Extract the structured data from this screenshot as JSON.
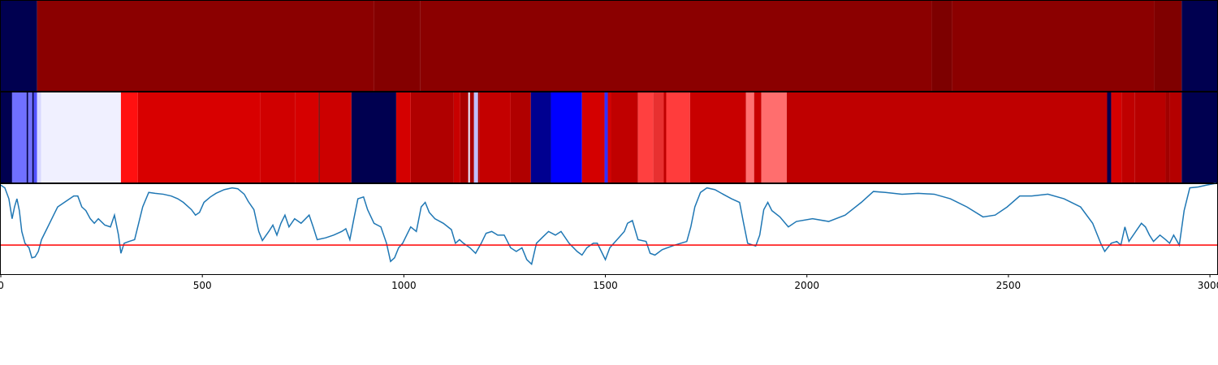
{
  "chart_data": [
    {
      "type": "strip",
      "xlim": [
        0,
        3018
      ],
      "bounds": [
        0,
        90,
        926,
        1041,
        2310,
        2360,
        2862,
        2930,
        3018
      ],
      "colors": [
        "#000050",
        "#8b0000",
        "#840000",
        "#8b0000",
        "#7d0000",
        "#8b0000",
        "#7f0000",
        "#000050"
      ]
    },
    {
      "type": "strip",
      "xlim": [
        0,
        3018
      ],
      "bounds": [
        0,
        28,
        64,
        68,
        78,
        82,
        90,
        100,
        298,
        340,
        644,
        731,
        789,
        791,
        870,
        981,
        1017,
        1124,
        1140,
        1160,
        1164,
        1174,
        1184,
        1188,
        1265,
        1315,
        1365,
        1442,
        1498,
        1506,
        1514,
        1581,
        1619,
        1645,
        1651,
        1710,
        1849,
        1869,
        1887,
        1950,
        2745,
        2755,
        2781,
        2814,
        2890,
        2900,
        2930,
        3018
      ],
      "colors": [
        "#000050",
        "#7070ff",
        "#000050",
        "#7070ff",
        "#000050",
        "#5050ff",
        "#d8d8ff",
        "#f0f0ff",
        "#ff1010",
        "#d80000",
        "#d00000",
        "#d60000",
        "#300000",
        "#cc0000",
        "#000050",
        "#d40000",
        "#b00000",
        "#c80000",
        "#a80000",
        "#e8e8ff",
        "#a80000",
        "#c0c0ff",
        "#a80000",
        "#c40000",
        "#b00000",
        "#000090",
        "#0000ff",
        "#d40000",
        "#3030ff",
        "#d40000",
        "#c00000",
        "#ff4040",
        "#e83030",
        "#c00000",
        "#ff3c3c",
        "#c80000",
        "#ff7070",
        "#c80000",
        "#ff6e6e",
        "#bf0000",
        "#000050",
        "#d40000",
        "#bf0000",
        "#b80000",
        "#a00000",
        "#b40000",
        "#000050"
      ]
    },
    {
      "type": "line",
      "xlim": [
        0,
        3018
      ],
      "ylim": [
        0,
        100
      ],
      "xticks": [
        0,
        500,
        1000,
        1500,
        2000,
        2500,
        3000
      ],
      "threshold": 32,
      "threshold_color": "#ff0000",
      "x": [
        0,
        10,
        20,
        28,
        34,
        40,
        46,
        52,
        60,
        70,
        77,
        85,
        93,
        101,
        111,
        121,
        131,
        141,
        161,
        181,
        191,
        201,
        211,
        222,
        232,
        242,
        258,
        272,
        282,
        292,
        298,
        306,
        318,
        332,
        342,
        352,
        367,
        383,
        403,
        423,
        439,
        453,
        473,
        483,
        493,
        504,
        520,
        534,
        554,
        574,
        588,
        604,
        614,
        628,
        640,
        649,
        665,
        675,
        685,
        695,
        705,
        715,
        729,
        745,
        765,
        775,
        785,
        806,
        826,
        846,
        856,
        866,
        876,
        886,
        900,
        910,
        926,
        943,
        957,
        967,
        977,
        987,
        997,
        1007,
        1017,
        1031,
        1043,
        1053,
        1063,
        1077,
        1098,
        1118,
        1128,
        1138,
        1148,
        1164,
        1178,
        1192,
        1204,
        1218,
        1233,
        1249,
        1265,
        1279,
        1293,
        1305,
        1317,
        1329,
        1345,
        1359,
        1376,
        1390,
        1410,
        1430,
        1442,
        1454,
        1470,
        1480,
        1490,
        1500,
        1511,
        1521,
        1535,
        1547,
        1555,
        1567,
        1581,
        1601,
        1611,
        1623,
        1641,
        1672,
        1702,
        1712,
        1722,
        1736,
        1752,
        1772,
        1792,
        1813,
        1833,
        1843,
        1853,
        1873,
        1883,
        1893,
        1903,
        1913,
        1933,
        1954,
        1974,
        2014,
        2054,
        2095,
        2135,
        2165,
        2195,
        2236,
        2276,
        2316,
        2356,
        2397,
        2437,
        2467,
        2497,
        2528,
        2558,
        2598,
        2638,
        2679,
        2709,
        2729,
        2739,
        2755,
        2769,
        2779,
        2789,
        2799,
        2816,
        2830,
        2840,
        2850,
        2860,
        2876,
        2890,
        2900,
        2910,
        2924,
        2936,
        2950,
        2971,
        2991,
        3015
      ],
      "series": [
        {
          "color": "#1f77b4",
          "values": [
            98,
            95,
            83,
            61,
            74,
            83,
            70,
            47,
            34,
            29,
            18,
            19,
            25,
            38,
            47,
            56,
            65,
            74,
            80,
            86,
            86,
            74,
            70,
            61,
            56,
            61,
            54,
            52,
            65,
            43,
            23,
            34,
            36,
            38,
            56,
            74,
            90,
            89,
            88,
            86,
            83,
            79,
            71,
            65,
            68,
            79,
            85,
            89,
            93,
            95,
            94,
            88,
            80,
            71,
            47,
            37,
            47,
            54,
            43,
            56,
            65,
            52,
            61,
            56,
            65,
            52,
            38,
            40,
            43,
            47,
            50,
            38,
            61,
            83,
            85,
            71,
            56,
            52,
            34,
            14,
            18,
            29,
            34,
            43,
            52,
            47,
            74,
            79,
            68,
            61,
            56,
            49,
            34,
            38,
            34,
            29,
            23,
            34,
            45,
            47,
            43,
            43,
            29,
            25,
            29,
            16,
            11,
            34,
            41,
            47,
            43,
            47,
            34,
            25,
            21,
            29,
            34,
            34,
            25,
            16,
            29,
            34,
            41,
            47,
            56,
            59,
            38,
            36,
            23,
            21,
            27,
            32,
            36,
            52,
            74,
            90,
            95,
            93,
            88,
            83,
            79,
            56,
            34,
            31,
            43,
            71,
            79,
            70,
            63,
            52,
            58,
            61,
            58,
            65,
            79,
            91,
            90,
            88,
            89,
            88,
            83,
            74,
            63,
            65,
            74,
            86,
            86,
            88,
            83,
            74,
            56,
            34,
            25,
            34,
            36,
            32,
            52,
            36,
            47,
            56,
            52,
            43,
            36,
            43,
            38,
            34,
            43,
            32,
            70,
            95,
            96,
            98,
            100
          ]
        }
      ]
    }
  ]
}
